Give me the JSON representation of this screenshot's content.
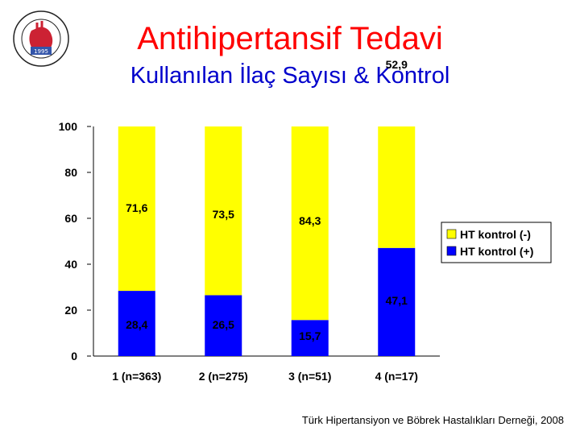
{
  "header": {
    "title": "Antihipertansif Tedavi",
    "subtitle": "Kullanılan İlaç Sayısı & Kontrol"
  },
  "logo": {
    "year": "1995",
    "ring_text": "TÜRK HİPERTANSİYON VE BÖBREK HASTALIKLARI DERNEĞİ"
  },
  "footer": {
    "source": "Türk Hipertansiyon ve Böbrek Hastalıkları Derneği, 2008"
  },
  "colors": {
    "title": "#ff0000",
    "subtitle": "#0000cc",
    "series_minus": "#ffff00",
    "series_plus": "#0000ff"
  },
  "chart_data": {
    "type": "bar",
    "stacked": true,
    "categories": [
      "1 (n=363)",
      "2 (n=275)",
      "3 (n=51)",
      "4 (n=17)"
    ],
    "series": [
      {
        "name": "HT kontrol (+)",
        "values": [
          28.4,
          26.5,
          15.7,
          47.1
        ],
        "labels": [
          "28,4",
          "26,5",
          "15,7",
          "47,1"
        ],
        "color": "#0000ff"
      },
      {
        "name": "HT kontrol (-)",
        "values": [
          71.6,
          73.5,
          84.3,
          52.9
        ],
        "labels": [
          "71,6",
          "73,5",
          "84,3",
          "52,9"
        ],
        "color": "#ffff00"
      }
    ],
    "ylim": [
      0,
      100
    ],
    "yticks": [
      0,
      20,
      40,
      60,
      80,
      100
    ],
    "ytick_labels": [
      "0",
      "20",
      "40",
      "60",
      "80",
      "100"
    ],
    "legend": {
      "position": "right",
      "entries": [
        "HT kontrol (-)",
        "HT kontrol (+)"
      ]
    },
    "grid": false
  }
}
